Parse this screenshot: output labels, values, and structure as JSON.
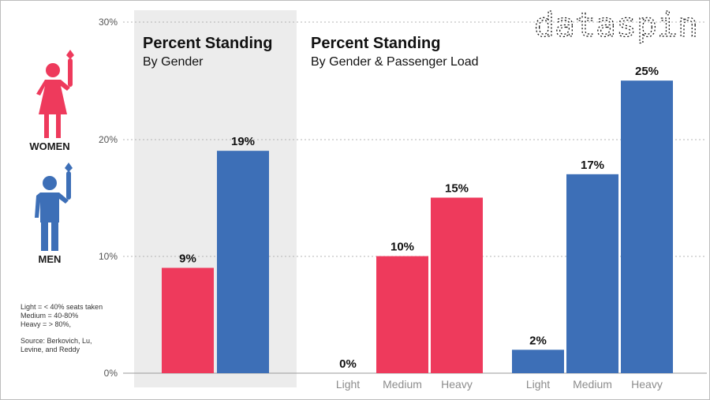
{
  "brand": "dataspin",
  "colors": {
    "women": "#ee3a5c",
    "men": "#3d6fb7",
    "panel": "#ececec"
  },
  "legend": {
    "women_label": "WOMEN",
    "men_label": "MEN",
    "women_icon": "woman-standing-icon",
    "men_icon": "man-standing-icon"
  },
  "notes": {
    "light": "Light = < 40% seats taken",
    "medium": "Medium = 40-80%",
    "heavy": "Heavy = > 80%,",
    "source1": "Source: Berkovich, Lu,",
    "source2": "Levine, and Reddy"
  },
  "chart_data": [
    {
      "type": "bar",
      "title": "Percent Standing",
      "subtitle": "By Gender",
      "categories": [
        "Women",
        "Men"
      ],
      "values": [
        9,
        19
      ],
      "labels": [
        "9%",
        "19%"
      ],
      "ylim": [
        0,
        30
      ],
      "yticks": [
        "0%",
        "10%",
        "20%",
        "30%"
      ],
      "grid": true
    },
    {
      "type": "bar",
      "title": "Percent Standing",
      "subtitle": "By Gender & Passenger Load",
      "categories": [
        "Light",
        "Medium",
        "Heavy"
      ],
      "series": [
        {
          "name": "Women",
          "values": [
            0,
            10,
            15
          ],
          "labels": [
            "0%",
            "10%",
            "15%"
          ]
        },
        {
          "name": "Men",
          "values": [
            2,
            17,
            25
          ],
          "labels": [
            "2%",
            "17%",
            "25%"
          ]
        }
      ],
      "ylim": [
        0,
        30
      ]
    }
  ]
}
